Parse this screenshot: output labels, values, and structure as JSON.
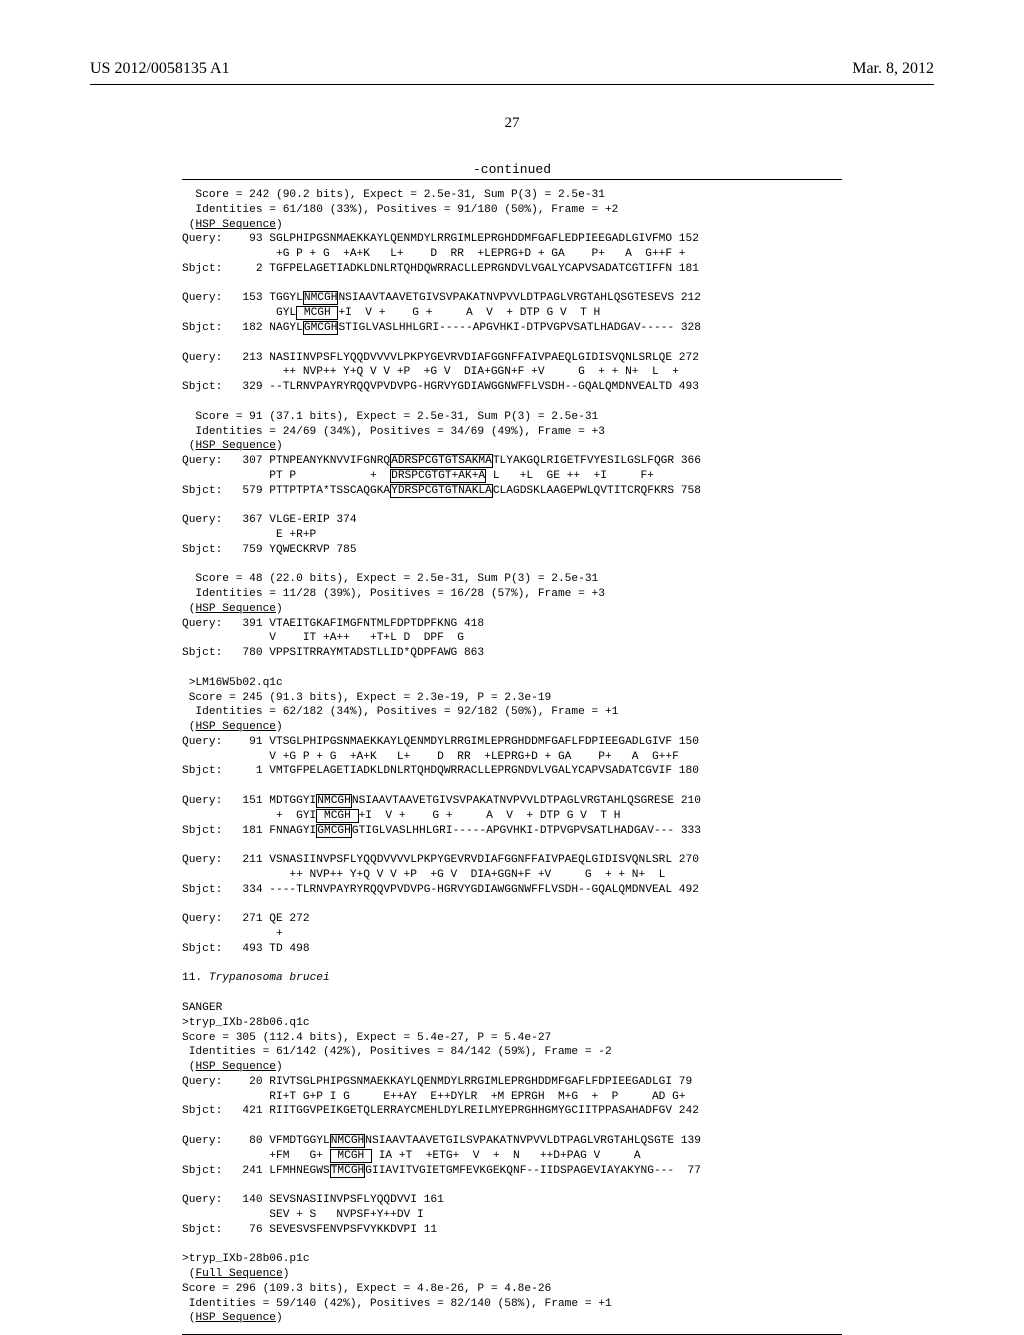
{
  "header": {
    "pub_no": "US 2012/0058135 A1",
    "date": "Mar. 8, 2012",
    "page_num": "27",
    "continued": "-continued"
  },
  "lines": [
    {
      "t": "  Score = 242 (90.2 bits), Expect = 2.5e-31, Sum P(3) = 2.5e-31"
    },
    {
      "t": "  Identities = 61/180 (33%), Positives = 91/180 (50%), Frame = +2"
    },
    {
      "t": " (",
      "a": "HSP Sequence",
      "b": ")"
    },
    {
      "t": "Query:    93 SGLPHIPGSNMAEKKAYLQENMDYLRRGIMLEPRGHDDMFGAFLEDPIEEGADLGIVFMO 152"
    },
    {
      "t": "              +G P + G  +A+K   L+    D  RR  +LEPRG+D + GA    P+   A  G++F +"
    },
    {
      "t": "Sbjct:     2 TGFPELAGETIADKLDNLRTQHDQWRRACLLEPRGNDVLVGALYCAPVSADATCGTIFFN 181"
    },
    {
      "t": ""
    },
    {
      "pre": "Query:   153 TGGYL",
      "box": "NMCGH",
      "post": "NSIAAVTAAVETGIVSVPAKATNVPVVLDTPAGLVRGTAHLQSGTESEVS 212"
    },
    {
      "pre": "              GYL",
      " box": " MCGH ",
      "post": "+I  V +    G +     A  V  + DTP G V  T H"
    },
    {
      "pre": "Sbjct:   182 NAGYL",
      "box": "GMCGH",
      "post": "STIGLVASLHHLGRI-----APGVHKI-DTPVGPVSATLHADGAV----- 328"
    },
    {
      "t": ""
    },
    {
      "t": "Query:   213 NASIINVPSFLYQQDVVVVLPKPYGEVRVDIAFGGNFFAIVPAEQLGIDISVQNLSRLQE 272"
    },
    {
      "t": "               ++ NVP++ Y+Q V V +P  +G V  DIA+GGN+F +V     G  + + N+  L  +"
    },
    {
      "t": "Sbjct:   329 --TLRNVPAYRYRQQVPVDVPG-HGRVYGDIAWGGNWFFLVSDH--GQALQMDNVEALTD 493"
    },
    {
      "t": ""
    },
    {
      "t": "  Score = 91 (37.1 bits), Expect = 2.5e-31, Sum P(3) = 2.5e-31"
    },
    {
      "t": "  Identities = 24/69 (34%), Positives = 34/69 (49%), Frame = +3"
    },
    {
      "t": " (",
      "a": "HSP Sequence",
      "b": ")"
    },
    {
      "pre": "Query:   307 PTNPEANYKNVVIFGNRQ",
      "box": "ADRSPCGTGTSAKMA",
      "post": "TLYAKGQLRIGETFVYESILGSLFQGR 366"
    },
    {
      "pre": "             PT P           +  ",
      "box": "DRSPCGTGT+AK+A",
      "post": " L   +L  GE ++  +I     F+"
    },
    {
      "pre": "Sbjct:   579 PTTPTPTA*TSSCAQGKA",
      "box": "YDRSPCGTGTNAKLA",
      "post": "CLAGDSKLAAGEPWLQVTITCRQFKRS 758"
    },
    {
      "t": ""
    },
    {
      "t": "Query:   367 VLGE-ERIP 374"
    },
    {
      "t": "              E +R+P"
    },
    {
      "t": "Sbjct:   759 YQWECKRVP 785"
    },
    {
      "t": ""
    },
    {
      "t": "  Score = 48 (22.0 bits), Expect = 2.5e-31, Sum P(3) = 2.5e-31"
    },
    {
      "t": "  Identities = 11/28 (39%), Positives = 16/28 (57%), Frame = +3"
    },
    {
      "t": " (",
      "a": "HSP Sequence",
      "b": ")"
    },
    {
      "t": "Query:   391 VTAEITGKAFIMGFNTMLFDPTDPFKNG 418"
    },
    {
      "t": "             V    IT +A++   +T+L D  DPF  G"
    },
    {
      "t": "Sbjct:   780 VPPSITRRAYMTADSTLLID*QDPFAWG 863"
    },
    {
      "t": ""
    },
    {
      "t": " >LM16W5b02.q1c"
    },
    {
      "t": " Score = 245 (91.3 bits), Expect = 2.3e-19, P = 2.3e-19"
    },
    {
      "t": "  Identities = 62/182 (34%), Positives = 92/182 (50%), Frame = +1"
    },
    {
      "t": " (",
      "a": "HSP Sequence",
      "b": ")"
    },
    {
      "t": "Query:    91 VTSGLPHIPGSNMAEKKAYLQENMDYLRRGIMLEPRGHDDMFGAFLFDPIEEGADLGIVF 150"
    },
    {
      "t": "             V +G P + G  +A+K   L+    D  RR  +LEPRG+D + GA    P+   A  G++F"
    },
    {
      "t": "Sbjct:     1 VMTGFPELAGETIADKLDNLRTQHDQWRRACLLEPRGNDVLVGALYCAPVSADATCGVIF 180"
    },
    {
      "t": ""
    },
    {
      "pre": "Query:   151 MDTGGYI",
      "box": "NMCGH",
      "post": "NSIAAVTAAVETGIVSVPAKATNVPVVLDTPAGLVRGTAHLQSGRESE 210"
    },
    {
      "pre": "              +  GYI",
      " box": " MCGH ",
      "post": "+I  V +    G +     A  V  + DTP G V  T H"
    },
    {
      "pre": "Sbjct:   181 FNNAGYI",
      "box": "GMCGH",
      "post": "GTIGLVASLHHLGRI-----APGVHKI-DTPVGPVSATLHADGAV--- 333"
    },
    {
      "t": ""
    },
    {
      "t": "Query:   211 VSNASIINVPSFLYQQDVVVVLPKPYGEVRVDIAFGGNFFAIVPAEQLGIDISVQNLSRL 270"
    },
    {
      "t": "                ++ NVP++ Y+Q V V +P  +G V  DIA+GGN+F +V     G  + + N+  L"
    },
    {
      "t": "Sbjct:   334 ----TLRNVPAYRYRQQVPVDVPG-HGRVYGDIAWGGNWFFLVSDH--GQALQMDNVEAL 492"
    },
    {
      "t": ""
    },
    {
      "t": "Query:   271 QE 272"
    },
    {
      "t": "              +"
    },
    {
      "t": "Sbjct:   493 TD 498"
    },
    {
      "t": ""
    },
    {
      "org": "11. ",
      "ital": "Trypanosoma brucei"
    },
    {
      "t": ""
    },
    {
      "t": "SANGER"
    },
    {
      "t": ">tryp_IXb-28b06.q1c"
    },
    {
      "t": "Score = 305 (112.4 bits), Expect = 5.4e-27, P = 5.4e-27"
    },
    {
      "t": " Identities = 61/142 (42%), Positives = 84/142 (59%), Frame = -2"
    },
    {
      "t": " (",
      "a": "HSP Sequence",
      "b": ")"
    },
    {
      "t": "Query:    20 RIVTSGLPHIPGSNMAEKKAYLQENMDYLRRGIMLEPRGHDDMFGAFLFDPIEEGADLGI 79"
    },
    {
      "t": "             RI+T G+P I G     E++AY  E++DYLR  +M EPRGH  M+G  +  P     AD G+"
    },
    {
      "t": "Sbjct:   421 RIITGGVPEIKGETQLERRAYCMEHLDYLREILMYEPRGHHGMYGCIITPPASAHADFGV 242"
    },
    {
      "t": ""
    },
    {
      "pre": "Query:    80 VFMDTGGYL",
      "box": "NMCGH",
      "post": "NSIAAVTAAVETGILSVPAKATNVPVVLDTPAGLVRGTAHLQSGTE 139"
    },
    {
      "pre": "             +FM   G+ ",
      "box": " MCGH ",
      "post": " IA +T  +ETG+  V  +  N   ++D+PAG V     A"
    },
    {
      "pre": "Sbjct:   241 LFMHNEGWS",
      "box": "TMCGH",
      "post": "GIIAVITVGIETGMFEVKGEKQNF--IIDSPAGEVIAYAKYNG---  77"
    },
    {
      "t": ""
    },
    {
      "t": "Query:   140 SEVSNASIINVPSFLYQQDVVI 161"
    },
    {
      "t": "             SEV + S   NVPSF+Y++DV I"
    },
    {
      "t": "Sbjct:    76 SEVESVSFENVPSFVYKKDVPI 11"
    },
    {
      "t": ""
    },
    {
      "t": ">tryp_IXb-28b06.p1c"
    },
    {
      "t": " (",
      "a": "Full Sequence",
      "b": ")"
    },
    {
      "t": "Score = 296 (109.3 bits), Expect = 4.8e-26, P = 4.8e-26"
    },
    {
      "t": " Identities = 59/140 (42%), Positives = 82/140 (58%), Frame = +1"
    },
    {
      "t": " (",
      "a": "HSP Sequence",
      "b": ")"
    }
  ]
}
